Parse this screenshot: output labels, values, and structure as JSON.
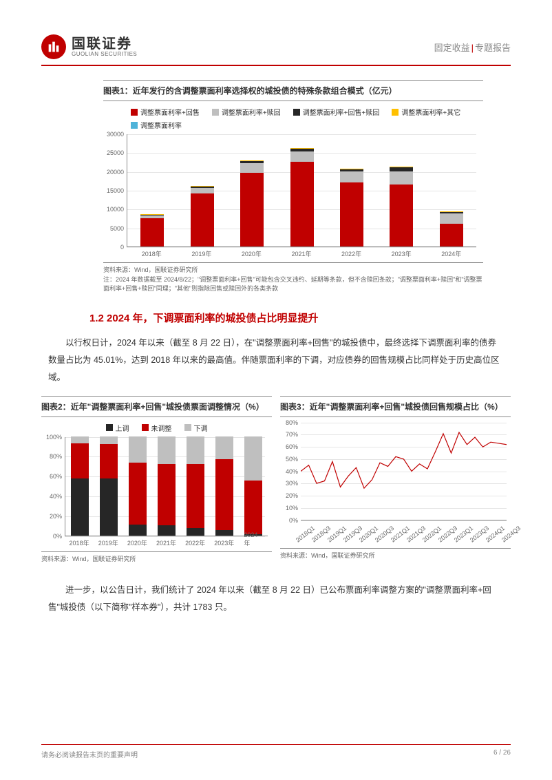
{
  "header": {
    "logo_cn": "国联证券",
    "logo_en": "GUOLIAN SECURITIES",
    "right_left": "固定收益",
    "right_right": "专题报告"
  },
  "chart1": {
    "title": "图表1：近年发行的含调整票面利率选择权的城投债的特殊条款组合模式（亿元）",
    "type": "stacked-bar",
    "legend": [
      {
        "label": "调整票面利率+回售",
        "color": "#c00000"
      },
      {
        "label": "调整票面利率+赎回",
        "color": "#bfbfbf"
      },
      {
        "label": "调整票面利率+回售+赎回",
        "color": "#262626"
      },
      {
        "label": "调整票面利率+其它",
        "color": "#ffc000"
      },
      {
        "label": "调整票面利率",
        "color": "#4fb3d9"
      }
    ],
    "categories": [
      "2018年",
      "2019年",
      "2020年",
      "2021年",
      "2022年",
      "2023年",
      "2024年"
    ],
    "ylim": [
      0,
      30000
    ],
    "ytick_step": 5000,
    "grid_color": "#e5e5e5",
    "series": {
      "red": [
        7500,
        14000,
        19500,
        22500,
        17000,
        16500,
        6000
      ],
      "grey": [
        800,
        1600,
        2700,
        2800,
        3000,
        3500,
        2800
      ],
      "black": [
        200,
        300,
        500,
        600,
        500,
        1000,
        400
      ],
      "yellow": [
        100,
        150,
        200,
        200,
        150,
        200,
        100
      ],
      "blue": [
        0,
        0,
        0,
        0,
        0,
        0,
        0
      ]
    },
    "source": "资料来源：Wind，国联证券研究所",
    "note": "注：2024 年数据截至 2024/8/22；\"调整票面利率+回售\"可能包含交叉违约、延期等条款，但不含赎回条款；\"调整票面利率+赎回\"和\"调整票面利率+回售+赎回\"同理；\"其他\"则指除回售或赎回外的各类条款"
  },
  "section_1_2": {
    "heading": "1.2 2024 年，下调票面利率的城投债占比明显提升",
    "para1": "以行权日计，2024 年以来（截至 8 月 22 日），在\"调整票面利率+回售\"的城投债中，最终选择下调票面利率的债券数量占比为 45.01%，达到 2018 年以来的最高值。伴随票面利率的下调，对应债券的回售规模占比同样处于历史高位区域。",
    "para2": "进一步，以公告日计，我们统计了 2024 年以来（截至 8 月 22 日）已公布票面利率调整方案的\"调整票面利率+回售\"城投债（以下简称\"样本券\"），共计 1783 只。"
  },
  "chart2": {
    "title": "图表2：近年\"调整票面利率+回售\"城投债票面调整情况（%）",
    "type": "stacked-bar-100",
    "legend": [
      {
        "label": "上调",
        "color": "#262626"
      },
      {
        "label": "未调整",
        "color": "#c00000"
      },
      {
        "label": "下调",
        "color": "#bfbfbf"
      }
    ],
    "categories": [
      "2018年",
      "2019年",
      "2020年",
      "2021年",
      "2022年",
      "2023年",
      "2024年"
    ],
    "ylim": [
      0,
      100
    ],
    "ytick_step": 20,
    "series": {
      "black": [
        57,
        57,
        11,
        10,
        7,
        5,
        1
      ],
      "red": [
        36,
        35,
        62,
        62,
        65,
        72,
        54
      ],
      "grey": [
        7,
        8,
        27,
        28,
        28,
        23,
        45
      ]
    },
    "source": "资料来源：Wind，国联证券研究所"
  },
  "chart3": {
    "title": "图表3：近年\"调整票面利率+回售\"城投债回售规模占比（%）",
    "type": "line",
    "line_color": "#c00000",
    "categories": [
      "2018Q1",
      "2018Q3",
      "2019Q1",
      "2019Q3",
      "2020Q1",
      "2020Q3",
      "2021Q1",
      "2021Q3",
      "2022Q1",
      "2022Q3",
      "2023Q1",
      "2023Q3",
      "2024Q1",
      "2024Q3"
    ],
    "ylim": [
      0,
      80
    ],
    "ytick_step": 10,
    "values": [
      40,
      45,
      30,
      32,
      48,
      27,
      36,
      43,
      26,
      33,
      47,
      44,
      52,
      50,
      40,
      46,
      42,
      56,
      71,
      55,
      72,
      62,
      68,
      60,
      64,
      63,
      62
    ],
    "source": "资料来源：Wind，国联证券研究所"
  },
  "footer": {
    "left": "请务必阅读报告末页的重要声明",
    "right": "6 / 26"
  }
}
